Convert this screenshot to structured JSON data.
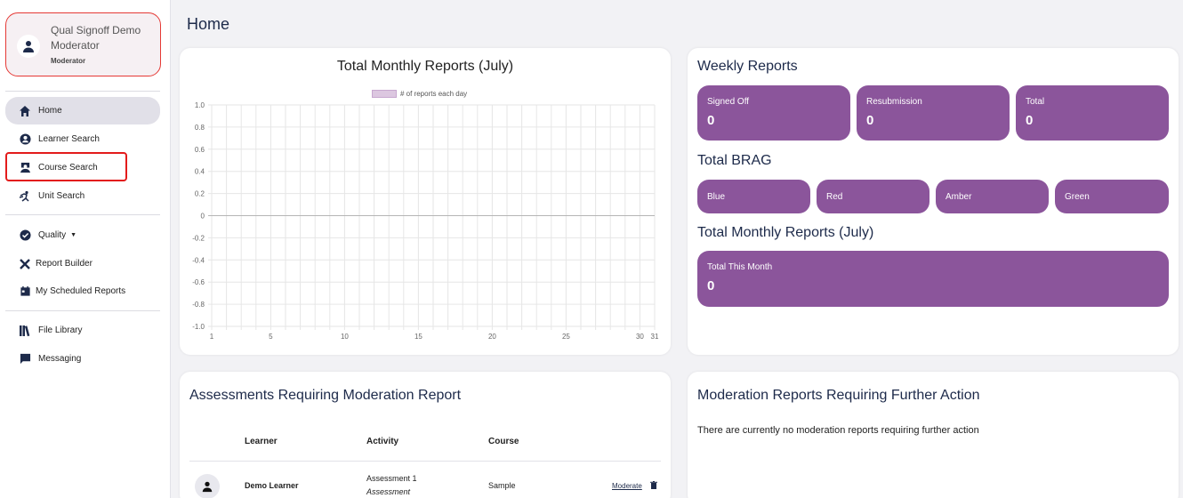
{
  "user": {
    "name": "Qual Signoff Demo Moderator",
    "role": "Moderator"
  },
  "nav": {
    "home": "Home",
    "learner_search": "Learner Search",
    "course_search": "Course Search",
    "unit_search": "Unit Search",
    "quality": "Quality",
    "report_builder": "Report Builder",
    "scheduled_reports": "My Scheduled Reports",
    "file_library": "File Library",
    "messaging": "Messaging"
  },
  "page": {
    "title": "Home"
  },
  "monthly_chart": {
    "title": "Total Monthly Reports (July)",
    "legend": "# of reports each day"
  },
  "chart_data": {
    "type": "bar",
    "title": "Total Monthly Reports (July)",
    "series": [
      {
        "name": "# of reports each day",
        "values": []
      }
    ],
    "x_ticks": [
      "1",
      "5",
      "10",
      "15",
      "20",
      "25",
      "30",
      "31"
    ],
    "y_ticks": [
      "1.0",
      "0.8",
      "0.6",
      "0.4",
      "0.2",
      "0",
      "-0.2",
      "-0.4",
      "-0.6",
      "-0.8",
      "-1.0"
    ],
    "ylim": [
      -1.0,
      1.0
    ],
    "xlim": [
      1,
      31
    ],
    "grid": true,
    "legend_position": "top"
  },
  "weekly": {
    "title": "Weekly Reports",
    "signed_off": {
      "label": "Signed Off",
      "value": "0"
    },
    "resubmission": {
      "label": "Resubmission",
      "value": "0"
    },
    "total": {
      "label": "Total",
      "value": "0"
    }
  },
  "brag": {
    "title": "Total BRAG",
    "blue": "Blue",
    "red": "Red",
    "amber": "Amber",
    "green": "Green"
  },
  "monthly_total": {
    "title": "Total Monthly Reports (July)",
    "label": "Total This Month",
    "value": "0"
  },
  "assessments": {
    "title": "Assessments Requiring Moderation Report",
    "columns": {
      "learner": "Learner",
      "activity": "Activity",
      "course": "Course"
    },
    "rows": [
      {
        "learner": "Demo Learner",
        "activity": "Assessment 1",
        "activity_type": "Assessment",
        "course": "Sample",
        "action": "Moderate"
      }
    ]
  },
  "moderation": {
    "title": "Moderation Reports Requiring Further Action",
    "empty_text": "There are currently no moderation reports requiring further action"
  },
  "colors": {
    "accent": "#8b559b",
    "highlight": "#e31b1b",
    "active_nav": "#e1e0e8"
  }
}
